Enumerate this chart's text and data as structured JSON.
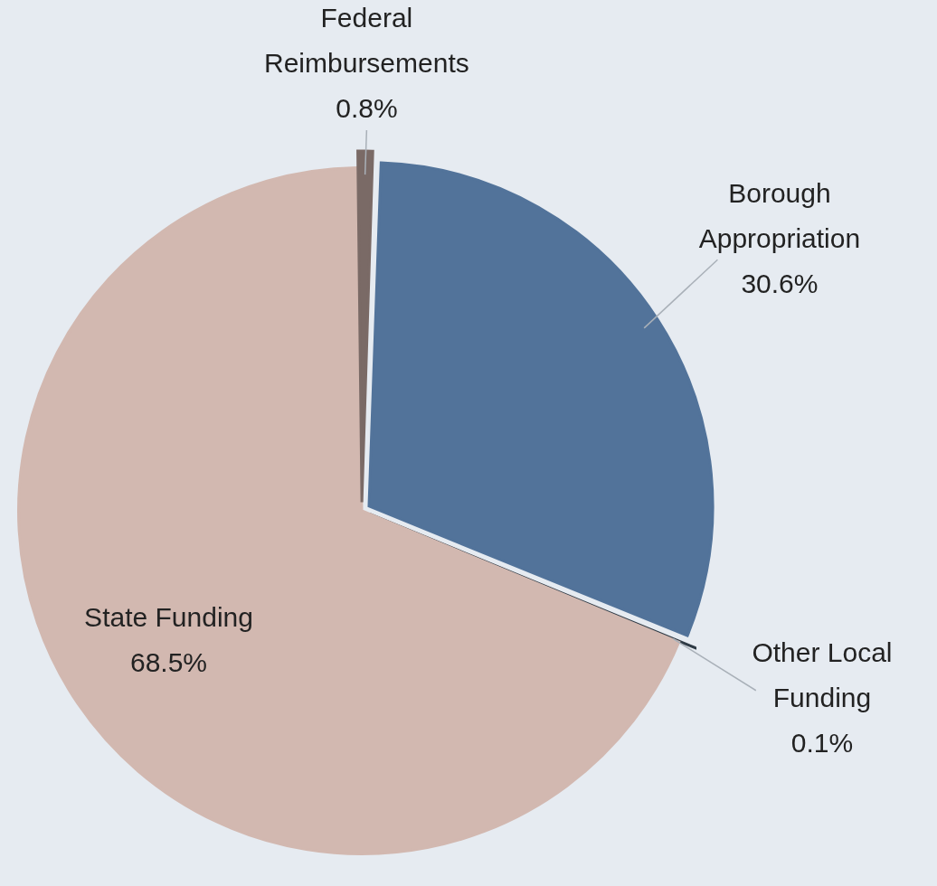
{
  "chart_data": {
    "type": "pie",
    "categories": [
      "Borough Appropriation",
      "Other Local Funding",
      "State Funding",
      "Federal Reimbursements"
    ],
    "values": [
      30.6,
      0.1,
      68.5,
      0.8
    ],
    "colors": [
      "#52739a",
      "#2e3a45",
      "#d2b8b0",
      "#7a6a66"
    ],
    "value_labels": [
      "30.6%",
      "0.1%",
      "68.5%",
      "0.8%"
    ],
    "legend": false
  }
}
